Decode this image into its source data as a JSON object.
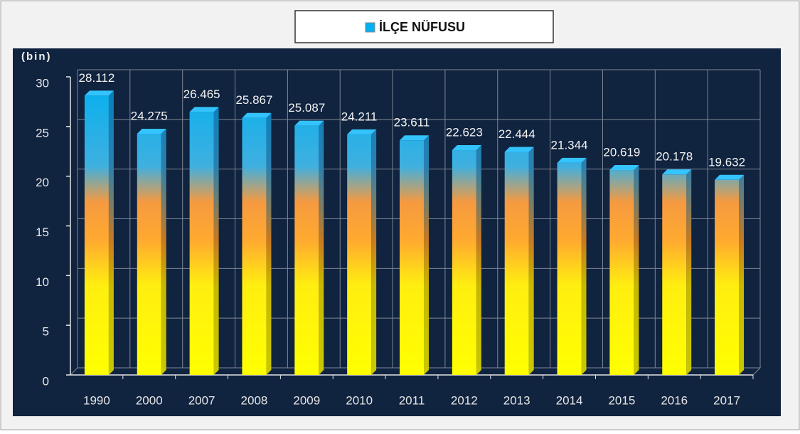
{
  "chart_data": {
    "type": "bar",
    "legend": "İLÇE NÜFUSU",
    "y_label": "(bin)",
    "categories": [
      "1990",
      "2000",
      "2007",
      "2008",
      "2009",
      "2010",
      "2011",
      "2012",
      "2013",
      "2014",
      "2015",
      "2016",
      "2017"
    ],
    "values": [
      28.112,
      24.275,
      26.465,
      25.867,
      25.087,
      24.211,
      23.611,
      22.623,
      22.444,
      21.344,
      20.619,
      20.178,
      19.632
    ],
    "ylim": [
      0,
      30
    ],
    "yticks": [
      0,
      5,
      10,
      15,
      20,
      25,
      30
    ],
    "grid": true
  }
}
